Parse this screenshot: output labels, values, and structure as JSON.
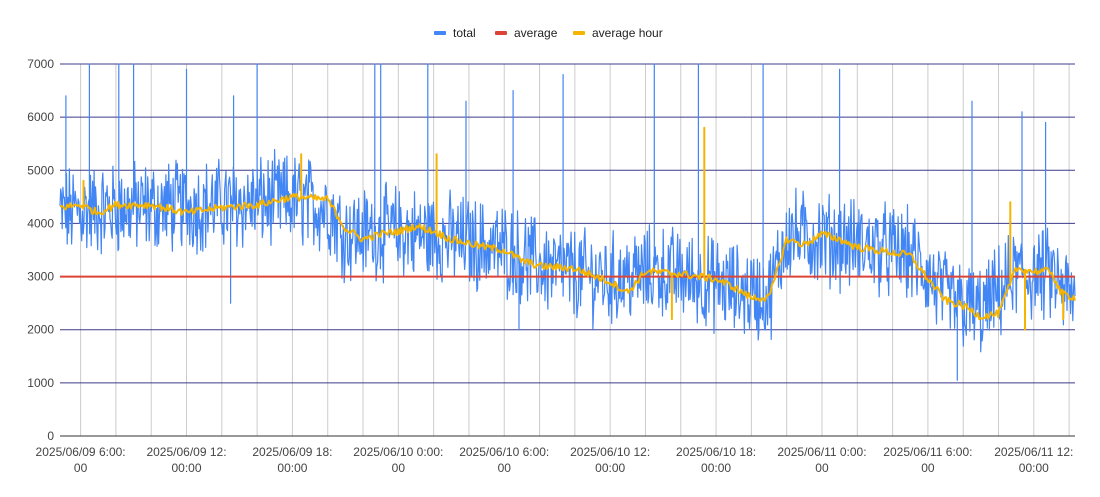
{
  "chart_data": {
    "type": "line",
    "title": "",
    "xlabel": "",
    "ylabel": "",
    "x_range": [
      "2025-06-09 04:50",
      "2025-06-11 14:20"
    ],
    "ylim": [
      0,
      7000
    ],
    "y_ticks": [
      "0",
      "1000",
      "2000",
      "3000",
      "4000",
      "5000",
      "6000",
      "7000"
    ],
    "x_ticks": [
      {
        "at": "2025-06-09 06:00",
        "line1": "2025/06/09 6:00:",
        "line2": "00"
      },
      {
        "at": "2025-06-09 12:00",
        "line1": "2025/06/09 12:",
        "line2": "00:00"
      },
      {
        "at": "2025-06-09 18:00",
        "line1": "2025/06/09 18:",
        "line2": "00:00"
      },
      {
        "at": "2025-06-10 00:00",
        "line1": "2025/06/10 0:00:",
        "line2": "00"
      },
      {
        "at": "2025-06-10 06:00",
        "line1": "2025/06/10 6:00:",
        "line2": "00"
      },
      {
        "at": "2025-06-10 12:00",
        "line1": "2025/06/10 12:",
        "line2": "00:00"
      },
      {
        "at": "2025-06-10 18:00",
        "line1": "2025/06/10 18:",
        "line2": "00:00"
      },
      {
        "at": "2025-06-11 00:00",
        "line1": "2025/06/11 0:00:",
        "line2": "00"
      },
      {
        "at": "2025-06-11 06:00",
        "line1": "2025/06/11 6:00:",
        "line2": "00"
      },
      {
        "at": "2025-06-11 12:00",
        "line1": "2025/06/11 12:",
        "line2": "00:00"
      }
    ],
    "grid": true,
    "legend_position": "top",
    "series": [
      {
        "name": "total",
        "color": "#4285F4",
        "style": "noisy per-minute values",
        "trend": [
          [
            "2025-06-09 04:50",
            4200
          ],
          [
            "2025-06-09 09:00",
            4300
          ],
          [
            "2025-06-09 14:00",
            4350
          ],
          [
            "2025-06-09 18:00",
            4450
          ],
          [
            "2025-06-09 20:00",
            4300
          ],
          [
            "2025-06-09 21:00",
            3800
          ],
          [
            "2025-06-10 00:00",
            3850
          ],
          [
            "2025-06-10 03:00",
            3700
          ],
          [
            "2025-06-10 06:00",
            3500
          ],
          [
            "2025-06-10 09:00",
            3100
          ],
          [
            "2025-06-10 12:00",
            2950
          ],
          [
            "2025-06-10 15:00",
            3100
          ],
          [
            "2025-06-10 18:00",
            2850
          ],
          [
            "2025-06-10 21:00",
            2600
          ],
          [
            "2025-06-10 22:00",
            3800
          ],
          [
            "2025-06-11 02:00",
            3600
          ],
          [
            "2025-06-11 05:00",
            3400
          ],
          [
            "2025-06-11 07:00",
            2600
          ],
          [
            "2025-06-11 09:00",
            2300
          ],
          [
            "2025-06-11 11:00",
            3050
          ],
          [
            "2025-06-11 13:00",
            3000
          ],
          [
            "2025-06-11 14:20",
            2500
          ]
        ],
        "spikes_to": [
          [
            "2025-06-09 05:10",
            6400
          ],
          [
            "2025-06-09 06:30",
            7000
          ],
          [
            "2025-06-09 08:10",
            7000
          ],
          [
            "2025-06-09 09:00",
            7000
          ],
          [
            "2025-06-09 12:00",
            6900
          ],
          [
            "2025-06-09 14:40",
            6400
          ],
          [
            "2025-06-09 16:00",
            7000
          ],
          [
            "2025-06-09 22:40",
            7000
          ],
          [
            "2025-06-09 23:00",
            7000
          ],
          [
            "2025-06-10 01:40",
            7000
          ],
          [
            "2025-06-10 03:50",
            6300
          ],
          [
            "2025-06-10 06:30",
            6500
          ],
          [
            "2025-06-10 09:20",
            6800
          ],
          [
            "2025-06-10 14:30",
            7000
          ],
          [
            "2025-06-10 17:00",
            7000
          ],
          [
            "2025-06-10 20:40",
            7000
          ],
          [
            "2025-06-11 01:00",
            6900
          ],
          [
            "2025-06-11 08:30",
            6300
          ],
          [
            "2025-06-11 11:20",
            6100
          ],
          [
            "2025-06-11 12:40",
            5900
          ]
        ],
        "dips_to": [
          [
            "2025-06-09 14:30",
            2500
          ],
          [
            "2025-06-10 06:50",
            2000
          ],
          [
            "2025-06-11 07:40",
            1050
          ]
        ]
      },
      {
        "name": "average",
        "color": "#DB4437",
        "values": [
          [
            "2025-06-09 04:50",
            3000
          ],
          [
            "2025-06-11 14:20",
            3000
          ]
        ]
      },
      {
        "name": "average hour",
        "color": "#F4B400",
        "values": [
          [
            "2025-06-09 04:50",
            4300
          ],
          [
            "2025-06-09 06:00",
            4350
          ],
          [
            "2025-06-09 07:00",
            4200
          ],
          [
            "2025-06-09 08:00",
            4350
          ],
          [
            "2025-06-09 10:00",
            4350
          ],
          [
            "2025-06-09 12:00",
            4200
          ],
          [
            "2025-06-09 14:00",
            4300
          ],
          [
            "2025-06-09 16:00",
            4350
          ],
          [
            "2025-06-09 18:00",
            4500
          ],
          [
            "2025-06-09 20:00",
            4450
          ],
          [
            "2025-06-09 21:00",
            3900
          ],
          [
            "2025-06-09 22:00",
            3700
          ],
          [
            "2025-06-09 23:00",
            3800
          ],
          [
            "2025-06-10 00:00",
            3850
          ],
          [
            "2025-06-10 01:00",
            3950
          ],
          [
            "2025-06-10 02:00",
            3850
          ],
          [
            "2025-06-10 03:00",
            3700
          ],
          [
            "2025-06-10 05:00",
            3550
          ],
          [
            "2025-06-10 06:00",
            3500
          ],
          [
            "2025-06-10 07:00",
            3300
          ],
          [
            "2025-06-10 08:00",
            3200
          ],
          [
            "2025-06-10 10:00",
            3150
          ],
          [
            "2025-06-10 12:00",
            2900
          ],
          [
            "2025-06-10 13:00",
            2700
          ],
          [
            "2025-06-10 14:00",
            3100
          ],
          [
            "2025-06-10 16:00",
            3050
          ],
          [
            "2025-06-10 17:00",
            3000
          ],
          [
            "2025-06-10 18:00",
            2950
          ],
          [
            "2025-06-10 19:00",
            2800
          ],
          [
            "2025-06-10 20:00",
            2600
          ],
          [
            "2025-06-10 21:00",
            2600
          ],
          [
            "2025-06-10 22:00",
            3700
          ],
          [
            "2025-06-10 23:00",
            3600
          ],
          [
            "2025-06-11 00:00",
            3800
          ],
          [
            "2025-06-11 01:00",
            3700
          ],
          [
            "2025-06-11 02:00",
            3550
          ],
          [
            "2025-06-11 04:00",
            3450
          ],
          [
            "2025-06-11 05:00",
            3400
          ],
          [
            "2025-06-11 06:00",
            2950
          ],
          [
            "2025-06-11 07:00",
            2550
          ],
          [
            "2025-06-11 08:00",
            2450
          ],
          [
            "2025-06-11 09:00",
            2250
          ],
          [
            "2025-06-11 10:00",
            2300
          ],
          [
            "2025-06-11 11:00",
            3150
          ],
          [
            "2025-06-11 12:00",
            3100
          ],
          [
            "2025-06-11 13:00",
            3100
          ],
          [
            "2025-06-11 13:30",
            2700
          ],
          [
            "2025-06-11 14:20",
            2600
          ]
        ],
        "spikes_to": [
          [
            "2025-06-09 06:10",
            4800
          ],
          [
            "2025-06-09 18:30",
            5300
          ],
          [
            "2025-06-10 02:10",
            5300
          ],
          [
            "2025-06-10 17:20",
            5800
          ],
          [
            "2025-06-11 10:40",
            4400
          ]
        ],
        "dips_to": [
          [
            "2025-06-10 15:30",
            2200
          ],
          [
            "2025-06-11 11:30",
            2000
          ],
          [
            "2025-06-11 13:40",
            2200
          ]
        ]
      }
    ]
  }
}
